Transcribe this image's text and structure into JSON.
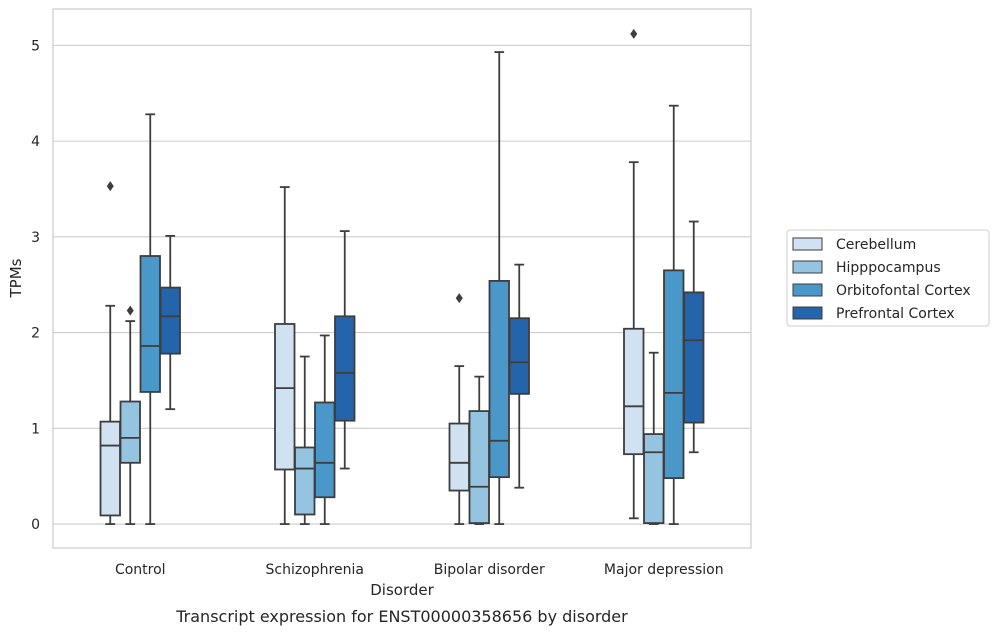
{
  "chart_data": {
    "type": "box",
    "title": "",
    "caption": "Transcript expression for ENST00000358656 by disorder",
    "xlabel": "Disorder",
    "ylabel": "TPMs",
    "ylim": [
      -0.25,
      5.38
    ],
    "yticks": [
      "0",
      "1",
      "2",
      "3",
      "4",
      "5"
    ],
    "grid": "horizontal",
    "legend_position": "right",
    "categories": [
      "Control",
      "Schizophrenia",
      "Bipolar disorder",
      "Major depression"
    ],
    "series": [
      {
        "name": "Cerebellum",
        "color": "#d0e1f2",
        "boxes": [
          {
            "whisker_low": 0.0,
            "q1": 0.09,
            "median": 0.82,
            "q3": 1.07,
            "whisker_high": 2.28,
            "outliers": [
              3.53
            ]
          },
          {
            "whisker_low": 0.0,
            "q1": 0.57,
            "median": 1.42,
            "q3": 2.09,
            "whisker_high": 3.52,
            "outliers": []
          },
          {
            "whisker_low": 0.0,
            "q1": 0.35,
            "median": 0.64,
            "q3": 1.05,
            "whisker_high": 1.65,
            "outliers": [
              2.36
            ]
          },
          {
            "whisker_low": 0.06,
            "q1": 0.73,
            "median": 1.23,
            "q3": 2.04,
            "whisker_high": 3.78,
            "outliers": [
              5.12
            ]
          }
        ]
      },
      {
        "name": "Hipppocampus",
        "color": "#94c4df",
        "boxes": [
          {
            "whisker_low": 0.0,
            "q1": 0.64,
            "median": 0.9,
            "q3": 1.28,
            "whisker_high": 2.12,
            "outliers": [
              2.23
            ]
          },
          {
            "whisker_low": 0.0,
            "q1": 0.1,
            "median": 0.58,
            "q3": 0.8,
            "whisker_high": 1.75,
            "outliers": []
          },
          {
            "whisker_low": 0.0,
            "q1": 0.01,
            "median": 0.39,
            "q3": 1.18,
            "whisker_high": 1.54,
            "outliers": []
          },
          {
            "whisker_low": 0.0,
            "q1": 0.01,
            "median": 0.75,
            "q3": 0.94,
            "whisker_high": 1.79,
            "outliers": []
          }
        ]
      },
      {
        "name": "Orbitofontal Cortex",
        "color": "#4a98c9",
        "boxes": [
          {
            "whisker_low": 0.0,
            "q1": 1.38,
            "median": 1.86,
            "q3": 2.8,
            "whisker_high": 4.28,
            "outliers": []
          },
          {
            "whisker_low": 0.0,
            "q1": 0.28,
            "median": 0.64,
            "q3": 1.27,
            "whisker_high": 1.97,
            "outliers": []
          },
          {
            "whisker_low": 0.0,
            "q1": 0.49,
            "median": 0.87,
            "q3": 2.54,
            "whisker_high": 4.93,
            "outliers": []
          },
          {
            "whisker_low": 0.0,
            "q1": 0.48,
            "median": 1.37,
            "q3": 2.65,
            "whisker_high": 4.37,
            "outliers": []
          }
        ]
      },
      {
        "name": "Prefrontal Cortex",
        "color": "#2464ab",
        "boxes": [
          {
            "whisker_low": 1.2,
            "q1": 1.78,
            "median": 2.17,
            "q3": 2.47,
            "whisker_high": 3.01,
            "outliers": []
          },
          {
            "whisker_low": 0.58,
            "q1": 1.08,
            "median": 1.58,
            "q3": 2.17,
            "whisker_high": 3.06,
            "outliers": []
          },
          {
            "whisker_low": 0.38,
            "q1": 1.36,
            "median": 1.69,
            "q3": 2.15,
            "whisker_high": 2.71,
            "outliers": []
          },
          {
            "whisker_low": 0.75,
            "q1": 1.06,
            "median": 1.92,
            "q3": 2.42,
            "whisker_high": 3.16,
            "outliers": []
          }
        ]
      }
    ]
  }
}
